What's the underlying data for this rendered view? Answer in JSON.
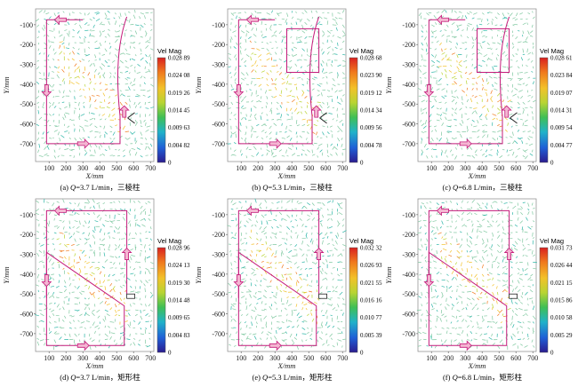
{
  "colorbar_title": "Vel Mag",
  "xlabel": "X/mm",
  "ylabel": "Y/mm",
  "xticks": [
    "100",
    "200",
    "300",
    "400",
    "500",
    "600",
    "700"
  ],
  "yticks": [
    "-100",
    "-200",
    "-300",
    "-400",
    "-500",
    "-600",
    "-700"
  ],
  "colors": {
    "scale": [
      "#2b1c8f",
      "#1f5fd6",
      "#20b2c9",
      "#3fbf56",
      "#b8d432",
      "#f2c12a",
      "#f07a1e",
      "#d9201f"
    ],
    "streamline": "#c41a7a",
    "arrow_fill": "#f4b6d2",
    "arrow_stroke": "#c41a7a",
    "vector": "#7fc8a0"
  },
  "chart_data": [
    {
      "type": "vector-field",
      "caption_prefix": "(a) ",
      "q_var": "Q",
      "caption_suffix": "=3.7 L/min，三棱柱",
      "flow_rate": 3.7,
      "obstacle": "三棱柱",
      "xlim": [
        20,
        720
      ],
      "ylim": [
        -790,
        -20
      ],
      "colorbar_ticks": [
        "0.028 89",
        "0.024 08",
        "0.019 26",
        "0.014 45",
        "0.009 63",
        "0.004 82",
        "0"
      ]
    },
    {
      "type": "vector-field",
      "caption_prefix": "(b) ",
      "q_var": "Q",
      "caption_suffix": "=5.3 L/min，三棱柱",
      "flow_rate": 5.3,
      "obstacle": "三棱柱",
      "xlim": [
        20,
        720
      ],
      "ylim": [
        -790,
        -20
      ],
      "colorbar_ticks": [
        "0.028 68",
        "0.023 90",
        "0.019 12",
        "0.014 34",
        "0.009 56",
        "0.004 78",
        "0"
      ]
    },
    {
      "type": "vector-field",
      "caption_prefix": "(c) ",
      "q_var": "Q",
      "caption_suffix": "=6.8 L/min，三棱柱",
      "flow_rate": 6.8,
      "obstacle": "三棱柱",
      "xlim": [
        20,
        720
      ],
      "ylim": [
        -790,
        -20
      ],
      "colorbar_ticks": [
        "0.028 61",
        "0.023 84",
        "0.019 07",
        "0.014 31",
        "0.009 54",
        "0.004 77",
        "0"
      ]
    },
    {
      "type": "vector-field",
      "caption_prefix": "(d) ",
      "q_var": "Q",
      "caption_suffix": "=3.7 L/min，矩形柱",
      "flow_rate": 3.7,
      "obstacle": "矩形柱",
      "xlim": [
        20,
        720
      ],
      "ylim": [
        -790,
        -20
      ],
      "colorbar_ticks": [
        "0.028 96",
        "0.024 13",
        "0.019 30",
        "0.014 48",
        "0.009 65",
        "0.004 83",
        "0"
      ]
    },
    {
      "type": "vector-field",
      "caption_prefix": "(e) ",
      "q_var": "Q",
      "caption_suffix": "=5.3 L/min，矩形柱",
      "flow_rate": 5.3,
      "obstacle": "矩形柱",
      "xlim": [
        20,
        720
      ],
      "ylim": [
        -790,
        -20
      ],
      "colorbar_ticks": [
        "0.032 32",
        "0.026 93",
        "0.021 55",
        "0.016 16",
        "0.010 77",
        "0.005 39",
        "0"
      ]
    },
    {
      "type": "vector-field",
      "caption_prefix": "(f) ",
      "q_var": "Q",
      "caption_suffix": "=6.8 L/min，矩形柱",
      "flow_rate": 6.8,
      "obstacle": "矩形柱",
      "xlim": [
        20,
        720
      ],
      "ylim": [
        -790,
        -20
      ],
      "colorbar_ticks": [
        "0.031 73",
        "0.026 44",
        "0.021 15",
        "0.015 86",
        "0.010 58",
        "0.005 29",
        "0"
      ]
    }
  ]
}
